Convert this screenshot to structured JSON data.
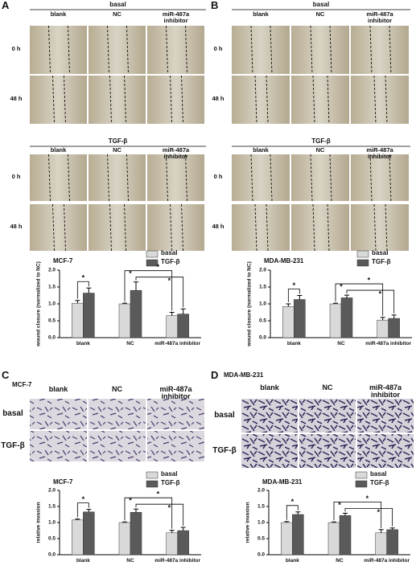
{
  "panels": [
    {
      "label": "A",
      "kind": "wound",
      "sections": [
        {
          "header": "basal",
          "columns": [
            "blank",
            "NC",
            "miR-487a inhibitor"
          ],
          "rows": [
            "0 h",
            "48 h"
          ]
        },
        {
          "header": "TGF-β",
          "columns": [
            "blank",
            "NC",
            "miR-487a inhibitor"
          ],
          "rows": [
            "0 h",
            "48 h"
          ]
        }
      ],
      "chart": {
        "type": "bar",
        "title": "MCF-7",
        "ylabel": "wound closure (normalized to NC)",
        "categories": [
          "blank",
          "NC",
          "miR-487a inhibitor"
        ],
        "series": [
          {
            "name": "basal",
            "color": "#d9d9d9",
            "values": [
              1.02,
              1.0,
              0.65
            ],
            "errors": [
              0.08,
              0.02,
              0.1
            ]
          },
          {
            "name": "TGF-β",
            "color": "#5a5a5a",
            "values": [
              1.32,
              1.4,
              0.7
            ],
            "errors": [
              0.15,
              0.25,
              0.15
            ]
          }
        ],
        "ylim": [
          0,
          2
        ],
        "yticks": [
          {
            "value": 0,
            "label": "0.0"
          },
          0.5,
          {
            "value": 1,
            "label": "1.0"
          },
          1.5,
          {
            "value": 2,
            "label": "2.0"
          }
        ],
        "annotations": [
          "*",
          "*",
          "*",
          "*"
        ]
      }
    },
    {
      "label": "B",
      "kind": "wound",
      "sections": [
        {
          "header": "basal",
          "columns": [
            "blank",
            "NC",
            "miR-487a inhibitor"
          ],
          "rows": [
            "0 h",
            "48 h"
          ]
        },
        {
          "header": "TGF-β",
          "columns": [
            "blank",
            "NC",
            "miR-487a inhibitor"
          ],
          "rows": [
            "0 h",
            "48 h"
          ]
        }
      ],
      "chart": {
        "type": "bar",
        "title": "MDA-MB-231",
        "ylabel": "wound closure (normalized to NC)",
        "categories": [
          "blank",
          "NC",
          "miR-487a inhibitor"
        ],
        "series": [
          {
            "name": "basal",
            "color": "#d9d9d9",
            "values": [
              0.92,
              1.0,
              0.52
            ],
            "errors": [
              0.08,
              0.02,
              0.08
            ]
          },
          {
            "name": "TGF-β",
            "color": "#5a5a5a",
            "values": [
              1.13,
              1.18,
              0.57
            ],
            "errors": [
              0.12,
              0.08,
              0.1
            ]
          }
        ],
        "ylim": [
          0,
          2
        ],
        "yticks": [
          {
            "value": 0,
            "label": "0.0"
          },
          0.5,
          {
            "value": 1,
            "label": "1.0"
          },
          1.5,
          {
            "value": 2,
            "label": "2.0"
          }
        ],
        "annotations": [
          "*",
          "*",
          "*",
          "*"
        ]
      }
    },
    {
      "label": "C",
      "kind": "transwell",
      "sections": [
        {
          "header": "MCF-7",
          "columns": [
            "blank",
            "NC",
            "miR-487a inhibitor"
          ],
          "rows": [
            "basal",
            "TGF-β"
          ]
        }
      ],
      "chart": {
        "type": "bar",
        "title": "MCF-7",
        "ylabel": "relative invasion",
        "categories": [
          "blank",
          "NC",
          "miR-487a inhibitor"
        ],
        "series": [
          {
            "name": "basal",
            "color": "#d9d9d9",
            "values": [
              1.08,
              1.0,
              0.68
            ],
            "errors": [
              0.03,
              0.02,
              0.08
            ]
          },
          {
            "name": "TGF-β",
            "color": "#5a5a5a",
            "values": [
              1.33,
              1.32,
              0.75
            ],
            "errors": [
              0.08,
              0.1,
              0.1
            ]
          }
        ],
        "ylim": [
          0,
          2
        ],
        "yticks": [
          {
            "value": 0,
            "label": "0.0"
          },
          0.5,
          {
            "value": 1,
            "label": "1.0"
          },
          1.5,
          {
            "value": 2,
            "label": "2.0"
          }
        ],
        "annotations": [
          "*",
          "*",
          "*",
          "*"
        ]
      }
    },
    {
      "label": "D",
      "kind": "transwell",
      "sections": [
        {
          "header": "MDA-MB-231",
          "columns": [
            "blank",
            "NC",
            "miR-487a inhibitor"
          ],
          "rows": [
            "basal",
            "TGF-β"
          ]
        }
      ],
      "chart": {
        "type": "bar",
        "title": "MDA-MB-231",
        "ylabel": "relative invasion",
        "categories": [
          "blank",
          "NC",
          "miR-487a inhibitor"
        ],
        "series": [
          {
            "name": "basal",
            "color": "#d9d9d9",
            "values": [
              1.0,
              1.0,
              0.68
            ],
            "errors": [
              0.03,
              0.02,
              0.1
            ]
          },
          {
            "name": "TGF-β",
            "color": "#5a5a5a",
            "values": [
              1.25,
              1.22,
              0.78
            ],
            "errors": [
              0.08,
              0.07,
              0.05
            ]
          }
        ],
        "ylim": [
          0,
          2
        ],
        "yticks": [
          {
            "value": 0,
            "label": "0.0"
          },
          0.5,
          {
            "value": 1,
            "label": "1.0"
          },
          1.5,
          {
            "value": 2,
            "label": "2.0"
          }
        ],
        "annotations": [
          "*",
          "*",
          "*",
          "*"
        ]
      }
    }
  ]
}
